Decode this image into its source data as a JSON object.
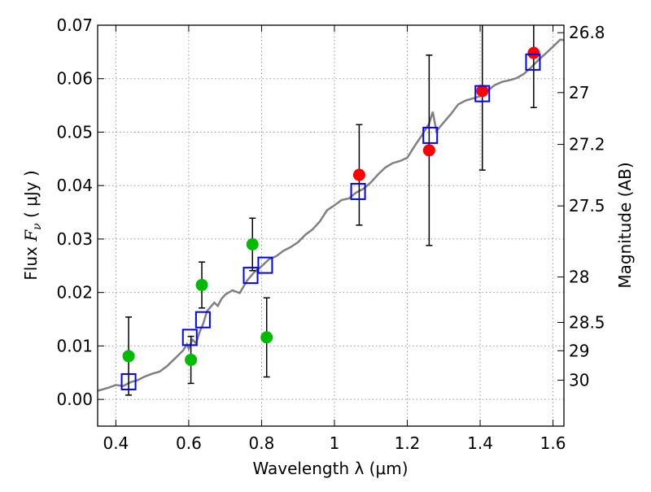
{
  "chart_data": {
    "type": "scatter",
    "xlabel": "Wavelength  λ (μm)",
    "ylabel_left": {
      "text_prefix": "Flux  ",
      "symbol": "F",
      "symbol_sub": "ν",
      "text_suffix": "  ( μJy )"
    },
    "ylabel_right": "Magnitude (AB)",
    "xlim": [
      0.35,
      1.63
    ],
    "ylim": [
      -0.005,
      0.07
    ],
    "x_ticks": [
      0.4,
      0.6,
      0.8,
      1.0,
      1.2,
      1.4,
      1.6
    ],
    "x_tick_labels": [
      "0.4",
      "0.6",
      "0.8",
      "1",
      "1.2",
      "1.4",
      "1.6"
    ],
    "y_ticks": [
      0.0,
      0.01,
      0.02,
      0.03,
      0.04,
      0.05,
      0.06,
      0.07
    ],
    "y_tick_labels": [
      "0.00",
      "0.01",
      "0.02",
      "0.03",
      "0.04",
      "0.05",
      "0.06",
      "0.07"
    ],
    "right_ticks": [
      {
        "label": "26.8",
        "flux": 0.0686
      },
      {
        "label": "27",
        "flux": 0.0574
      },
      {
        "label": "27.2",
        "flux": 0.0477
      },
      {
        "label": "27.5",
        "flux": 0.0362
      },
      {
        "label": "28",
        "flux": 0.0229
      },
      {
        "label": "28.5",
        "flux": 0.0144
      },
      {
        "label": "29",
        "flux": 0.0091
      },
      {
        "label": "30",
        "flux": 0.0036
      }
    ],
    "grid": true,
    "colors": {
      "green_points": "#00bb00",
      "red_points": "#ff0000",
      "model_boxes": "#0000ff",
      "spectrum": "#808080",
      "errorbars": "#000000",
      "grid": "#999999"
    },
    "series": [
      {
        "marker": "circle",
        "color": "#00bb00",
        "points": [
          {
            "x": 0.435,
            "y": 0.0081,
            "err": 0.0073
          },
          {
            "x": 0.606,
            "y": 0.0074,
            "err": 0.0044
          },
          {
            "x": 0.636,
            "y": 0.0214,
            "err": 0.0043
          },
          {
            "x": 0.775,
            "y": 0.029,
            "err": 0.0049
          },
          {
            "x": 0.814,
            "y": 0.0116,
            "err": 0.0074
          }
        ]
      },
      {
        "marker": "circle",
        "color": "#ff0000",
        "points": [
          {
            "x": 1.068,
            "y": 0.042,
            "err": 0.0094
          },
          {
            "x": 1.26,
            "y": 0.0466,
            "err": 0.0178
          },
          {
            "x": 1.406,
            "y": 0.0577,
            "err": 0.0148
          },
          {
            "x": 1.547,
            "y": 0.0648,
            "err": 0.0102
          }
        ]
      },
      {
        "marker": "square",
        "color": "#0000ff",
        "points": [
          {
            "x": 0.435,
            "y": 0.0033
          },
          {
            "x": 0.603,
            "y": 0.0116
          },
          {
            "x": 0.639,
            "y": 0.0149
          },
          {
            "x": 0.77,
            "y": 0.0232
          },
          {
            "x": 0.81,
            "y": 0.0251
          },
          {
            "x": 1.065,
            "y": 0.0389
          },
          {
            "x": 1.263,
            "y": 0.0494
          },
          {
            "x": 1.406,
            "y": 0.0572
          },
          {
            "x": 1.545,
            "y": 0.0631
          }
        ]
      },
      {
        "marker": "line",
        "color": "#808080",
        "points": [
          [
            0.35,
            0.0016
          ],
          [
            0.38,
            0.0022
          ],
          [
            0.4,
            0.0027
          ],
          [
            0.42,
            0.0025
          ],
          [
            0.44,
            0.0032
          ],
          [
            0.46,
            0.0036
          ],
          [
            0.48,
            0.0043
          ],
          [
            0.5,
            0.0048
          ],
          [
            0.52,
            0.0052
          ],
          [
            0.54,
            0.0062
          ],
          [
            0.56,
            0.0075
          ],
          [
            0.575,
            0.0085
          ],
          [
            0.585,
            0.0092
          ],
          [
            0.595,
            0.0103
          ],
          [
            0.6,
            0.0095
          ],
          [
            0.61,
            0.0112
          ],
          [
            0.62,
            0.0105
          ],
          [
            0.63,
            0.0126
          ],
          [
            0.64,
            0.0142
          ],
          [
            0.65,
            0.0165
          ],
          [
            0.66,
            0.0173
          ],
          [
            0.67,
            0.0181
          ],
          [
            0.68,
            0.0175
          ],
          [
            0.69,
            0.0188
          ],
          [
            0.7,
            0.0196
          ],
          [
            0.72,
            0.0204
          ],
          [
            0.74,
            0.0199
          ],
          [
            0.76,
            0.0222
          ],
          [
            0.78,
            0.0238
          ],
          [
            0.8,
            0.0249
          ],
          [
            0.82,
            0.0262
          ],
          [
            0.84,
            0.0268
          ],
          [
            0.86,
            0.0278
          ],
          [
            0.88,
            0.0285
          ],
          [
            0.9,
            0.0294
          ],
          [
            0.92,
            0.0308
          ],
          [
            0.94,
            0.0318
          ],
          [
            0.96,
            0.0333
          ],
          [
            0.98,
            0.0354
          ],
          [
            1.0,
            0.0363
          ],
          [
            1.02,
            0.0373
          ],
          [
            1.04,
            0.0376
          ],
          [
            1.06,
            0.0387
          ],
          [
            1.08,
            0.0394
          ],
          [
            1.1,
            0.0406
          ],
          [
            1.12,
            0.0421
          ],
          [
            1.14,
            0.0434
          ],
          [
            1.16,
            0.0442
          ],
          [
            1.18,
            0.0446
          ],
          [
            1.2,
            0.0452
          ],
          [
            1.22,
            0.0474
          ],
          [
            1.24,
            0.0494
          ],
          [
            1.26,
            0.0516
          ],
          [
            1.27,
            0.0538
          ],
          [
            1.28,
            0.0502
          ],
          [
            1.3,
            0.0518
          ],
          [
            1.32,
            0.0534
          ],
          [
            1.34,
            0.0552
          ],
          [
            1.36,
            0.0559
          ],
          [
            1.38,
            0.0563
          ],
          [
            1.4,
            0.0567
          ],
          [
            1.42,
            0.0577
          ],
          [
            1.44,
            0.0588
          ],
          [
            1.46,
            0.0594
          ],
          [
            1.48,
            0.0597
          ],
          [
            1.5,
            0.0601
          ],
          [
            1.52,
            0.0609
          ],
          [
            1.54,
            0.0621
          ],
          [
            1.56,
            0.0635
          ],
          [
            1.58,
            0.0647
          ],
          [
            1.6,
            0.066
          ],
          [
            1.62,
            0.0673
          ],
          [
            1.63,
            0.0672
          ]
        ]
      }
    ]
  }
}
